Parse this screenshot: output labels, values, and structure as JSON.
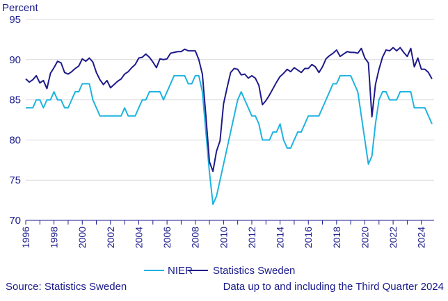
{
  "chart_data": {
    "type": "line",
    "ylabel": "Percent",
    "ylim": [
      70,
      95
    ],
    "yticks": [
      70,
      75,
      80,
      85,
      90,
      95
    ],
    "xlim": [
      1996,
      2024.9
    ],
    "xticks": [
      "1996",
      "1998",
      "2000",
      "2002",
      "2004",
      "2006",
      "2008",
      "2010",
      "2012",
      "2014",
      "2016",
      "2018",
      "2020",
      "2022",
      "2024"
    ],
    "grid": "horizontal",
    "legend_position": "bottom-center",
    "series": [
      {
        "name": "NIER",
        "color": "#1fb3e0",
        "points": [
          [
            1996.0,
            84
          ],
          [
            1996.25,
            84
          ],
          [
            1996.5,
            84
          ],
          [
            1996.75,
            85
          ],
          [
            1997.0,
            85
          ],
          [
            1997.25,
            84
          ],
          [
            1997.5,
            85
          ],
          [
            1997.75,
            85
          ],
          [
            1998.0,
            86
          ],
          [
            1998.25,
            85
          ],
          [
            1998.5,
            85
          ],
          [
            1998.75,
            84
          ],
          [
            1999.0,
            84
          ],
          [
            1999.25,
            85
          ],
          [
            1999.5,
            86
          ],
          [
            1999.75,
            86
          ],
          [
            2000.0,
            87
          ],
          [
            2000.25,
            87
          ],
          [
            2000.5,
            87
          ],
          [
            2000.75,
            85
          ],
          [
            2001.0,
            84
          ],
          [
            2001.25,
            83
          ],
          [
            2001.5,
            83
          ],
          [
            2001.75,
            83
          ],
          [
            2002.0,
            83
          ],
          [
            2002.25,
            83
          ],
          [
            2002.5,
            83
          ],
          [
            2002.75,
            83
          ],
          [
            2003.0,
            84
          ],
          [
            2003.25,
            83
          ],
          [
            2003.5,
            83
          ],
          [
            2003.75,
            83
          ],
          [
            2004.0,
            84
          ],
          [
            2004.25,
            85
          ],
          [
            2004.5,
            85
          ],
          [
            2004.75,
            86
          ],
          [
            2005.0,
            86
          ],
          [
            2005.25,
            86
          ],
          [
            2005.5,
            86
          ],
          [
            2005.75,
            85
          ],
          [
            2006.0,
            86
          ],
          [
            2006.25,
            87
          ],
          [
            2006.5,
            88
          ],
          [
            2006.75,
            88
          ],
          [
            2007.0,
            88
          ],
          [
            2007.25,
            88
          ],
          [
            2007.5,
            87
          ],
          [
            2007.75,
            87
          ],
          [
            2008.0,
            88
          ],
          [
            2008.25,
            88
          ],
          [
            2008.5,
            86
          ],
          [
            2008.75,
            81
          ],
          [
            2009.0,
            76
          ],
          [
            2009.25,
            72
          ],
          [
            2009.5,
            73
          ],
          [
            2009.75,
            75
          ],
          [
            2010.0,
            77
          ],
          [
            2010.25,
            79
          ],
          [
            2010.5,
            81
          ],
          [
            2010.75,
            83
          ],
          [
            2011.0,
            85
          ],
          [
            2011.25,
            86
          ],
          [
            2011.5,
            85
          ],
          [
            2011.75,
            84
          ],
          [
            2012.0,
            83
          ],
          [
            2012.25,
            83
          ],
          [
            2012.5,
            82
          ],
          [
            2012.75,
            80
          ],
          [
            2013.0,
            80
          ],
          [
            2013.25,
            80
          ],
          [
            2013.5,
            81
          ],
          [
            2013.75,
            81
          ],
          [
            2014.0,
            82
          ],
          [
            2014.25,
            80
          ],
          [
            2014.5,
            79
          ],
          [
            2014.75,
            79
          ],
          [
            2015.0,
            80
          ],
          [
            2015.25,
            81
          ],
          [
            2015.5,
            81
          ],
          [
            2015.75,
            82
          ],
          [
            2016.0,
            83
          ],
          [
            2016.25,
            83
          ],
          [
            2016.5,
            83
          ],
          [
            2016.75,
            83
          ],
          [
            2017.0,
            84
          ],
          [
            2017.25,
            85
          ],
          [
            2017.5,
            86
          ],
          [
            2017.75,
            87
          ],
          [
            2018.0,
            87
          ],
          [
            2018.25,
            88
          ],
          [
            2018.5,
            88
          ],
          [
            2018.75,
            88
          ],
          [
            2019.0,
            88
          ],
          [
            2019.25,
            87
          ],
          [
            2019.5,
            86
          ],
          [
            2019.75,
            83
          ],
          [
            2020.0,
            80
          ],
          [
            2020.25,
            77
          ],
          [
            2020.5,
            78
          ],
          [
            2020.75,
            82
          ],
          [
            2021.0,
            85
          ],
          [
            2021.25,
            86
          ],
          [
            2021.5,
            86
          ],
          [
            2021.75,
            85
          ],
          [
            2022.0,
            85
          ],
          [
            2022.25,
            85
          ],
          [
            2022.5,
            86
          ],
          [
            2022.75,
            86
          ],
          [
            2023.0,
            86
          ],
          [
            2023.25,
            86
          ],
          [
            2023.5,
            84
          ],
          [
            2023.75,
            84
          ],
          [
            2024.0,
            84
          ],
          [
            2024.25,
            84
          ],
          [
            2024.5,
            83
          ],
          [
            2024.75,
            82
          ]
        ]
      },
      {
        "name": "Statistics Sweden",
        "color": "#1f1a8a",
        "points": [
          [
            1996.0,
            87.6
          ],
          [
            1996.25,
            87.2
          ],
          [
            1996.5,
            87.5
          ],
          [
            1996.75,
            88.0
          ],
          [
            1997.0,
            87.1
          ],
          [
            1997.25,
            87.4
          ],
          [
            1997.5,
            86.4
          ],
          [
            1997.75,
            88.3
          ],
          [
            1998.0,
            89.0
          ],
          [
            1998.25,
            89.8
          ],
          [
            1998.5,
            89.6
          ],
          [
            1998.75,
            88.4
          ],
          [
            1999.0,
            88.2
          ],
          [
            1999.25,
            88.5
          ],
          [
            1999.5,
            88.9
          ],
          [
            1999.75,
            89.2
          ],
          [
            2000.0,
            90.1
          ],
          [
            2000.25,
            89.8
          ],
          [
            2000.5,
            90.2
          ],
          [
            2000.75,
            89.7
          ],
          [
            2001.0,
            88.4
          ],
          [
            2001.25,
            87.5
          ],
          [
            2001.5,
            86.9
          ],
          [
            2001.75,
            87.4
          ],
          [
            2002.0,
            86.5
          ],
          [
            2002.25,
            86.9
          ],
          [
            2002.5,
            87.3
          ],
          [
            2002.75,
            87.6
          ],
          [
            2003.0,
            88.2
          ],
          [
            2003.25,
            88.5
          ],
          [
            2003.5,
            89.0
          ],
          [
            2003.75,
            89.4
          ],
          [
            2004.0,
            90.2
          ],
          [
            2004.25,
            90.3
          ],
          [
            2004.5,
            90.7
          ],
          [
            2004.75,
            90.3
          ],
          [
            2005.0,
            89.7
          ],
          [
            2005.25,
            89.0
          ],
          [
            2005.5,
            90.1
          ],
          [
            2005.75,
            90.0
          ],
          [
            2006.0,
            90.1
          ],
          [
            2006.25,
            90.8
          ],
          [
            2006.5,
            90.9
          ],
          [
            2006.75,
            91.0
          ],
          [
            2007.0,
            91.0
          ],
          [
            2007.25,
            91.3
          ],
          [
            2007.5,
            91.1
          ],
          [
            2007.75,
            91.1
          ],
          [
            2008.0,
            91.1
          ],
          [
            2008.25,
            90.0
          ],
          [
            2008.5,
            88.2
          ],
          [
            2008.75,
            83.0
          ],
          [
            2009.0,
            77.3
          ],
          [
            2009.25,
            76.1
          ],
          [
            2009.5,
            78.6
          ],
          [
            2009.75,
            79.9
          ],
          [
            2010.0,
            84.5
          ],
          [
            2010.25,
            86.5
          ],
          [
            2010.5,
            88.4
          ],
          [
            2010.75,
            88.9
          ],
          [
            2011.0,
            88.8
          ],
          [
            2011.25,
            88.1
          ],
          [
            2011.5,
            88.2
          ],
          [
            2011.75,
            87.7
          ],
          [
            2012.0,
            88.0
          ],
          [
            2012.25,
            87.7
          ],
          [
            2012.5,
            86.8
          ],
          [
            2012.75,
            84.4
          ],
          [
            2013.0,
            84.9
          ],
          [
            2013.25,
            85.6
          ],
          [
            2013.5,
            86.4
          ],
          [
            2013.75,
            87.2
          ],
          [
            2014.0,
            87.9
          ],
          [
            2014.25,
            88.3
          ],
          [
            2014.5,
            88.8
          ],
          [
            2014.75,
            88.5
          ],
          [
            2015.0,
            89.0
          ],
          [
            2015.25,
            88.7
          ],
          [
            2015.5,
            88.4
          ],
          [
            2015.75,
            88.9
          ],
          [
            2016.0,
            88.9
          ],
          [
            2016.25,
            89.4
          ],
          [
            2016.5,
            89.1
          ],
          [
            2016.75,
            88.4
          ],
          [
            2017.0,
            89.1
          ],
          [
            2017.25,
            90.1
          ],
          [
            2017.5,
            90.5
          ],
          [
            2017.75,
            90.8
          ],
          [
            2018.0,
            91.2
          ],
          [
            2018.25,
            90.4
          ],
          [
            2018.5,
            90.7
          ],
          [
            2018.75,
            91.0
          ],
          [
            2019.0,
            90.9
          ],
          [
            2019.25,
            90.9
          ],
          [
            2019.5,
            90.8
          ],
          [
            2019.75,
            91.4
          ],
          [
            2020.0,
            90.2
          ],
          [
            2020.25,
            89.6
          ],
          [
            2020.5,
            82.9
          ],
          [
            2020.75,
            86.9
          ],
          [
            2021.0,
            88.8
          ],
          [
            2021.25,
            90.3
          ],
          [
            2021.5,
            91.2
          ],
          [
            2021.75,
            91.1
          ],
          [
            2022.0,
            91.5
          ],
          [
            2022.25,
            91.1
          ],
          [
            2022.5,
            91.5
          ],
          [
            2022.75,
            90.9
          ],
          [
            2023.0,
            90.4
          ],
          [
            2023.25,
            91.4
          ],
          [
            2023.5,
            89.1
          ],
          [
            2023.75,
            90.2
          ],
          [
            2024.0,
            88.8
          ],
          [
            2024.25,
            88.8
          ],
          [
            2024.5,
            88.4
          ],
          [
            2024.75,
            87.6
          ]
        ]
      }
    ]
  },
  "footer": {
    "source": "Source: Statistics Sweden",
    "note": "Data up to and including the Third Quarter 2024"
  }
}
